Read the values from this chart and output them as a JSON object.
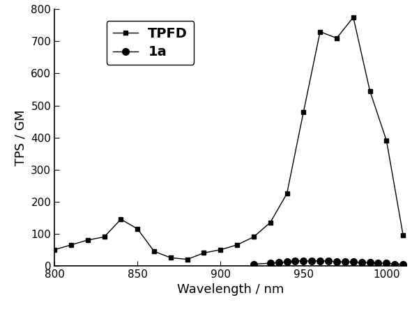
{
  "TPFD_x": [
    800,
    810,
    820,
    830,
    840,
    850,
    860,
    870,
    880,
    890,
    900,
    910,
    920,
    930,
    940,
    950,
    960,
    970,
    980,
    990,
    1000,
    1010
  ],
  "TPFD_y": [
    50,
    65,
    80,
    90,
    145,
    115,
    45,
    25,
    20,
    40,
    50,
    65,
    90,
    135,
    225,
    480,
    730,
    710,
    775,
    545,
    390,
    95
  ],
  "la_x": [
    920,
    930,
    935,
    940,
    945,
    950,
    955,
    960,
    965,
    970,
    975,
    980,
    985,
    990,
    995,
    1000,
    1005,
    1010
  ],
  "la_y": [
    5,
    8,
    10,
    12,
    15,
    15,
    15,
    15,
    15,
    12,
    12,
    12,
    10,
    10,
    8,
    8,
    5,
    5
  ],
  "xlabel": "Wavelength / nm",
  "ylabel": "TPS / GM",
  "xlim": [
    800,
    1012
  ],
  "ylim": [
    0,
    800
  ],
  "yticks": [
    0,
    100,
    200,
    300,
    400,
    500,
    600,
    700,
    800
  ],
  "xticks": [
    800,
    850,
    900,
    950,
    1000
  ],
  "legend_TPFD": "TPFD",
  "legend_1a": "1a",
  "line_color": "#000000",
  "bg_color": "#ffffff",
  "marker_size_sq": 5,
  "marker_size_circ": 7,
  "linewidth": 1.0
}
